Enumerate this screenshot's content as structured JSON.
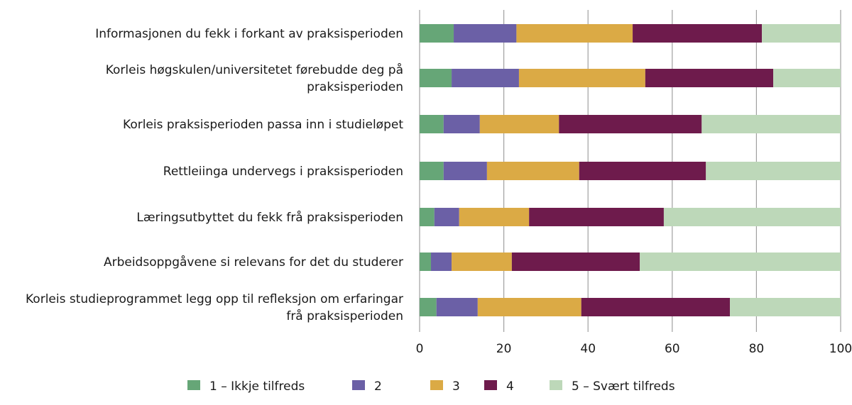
{
  "chart_data": {
    "type": "bar",
    "orientation": "horizontal",
    "stacked": true,
    "title": "",
    "xlabel": "",
    "ylabel": "",
    "xlim": [
      0,
      100
    ],
    "xticks": [
      0,
      20,
      40,
      60,
      80,
      100
    ],
    "grid": true,
    "legend_position": "bottom",
    "categories": [
      [
        "Informasjonen du fekk i forkant av praksisperioden"
      ],
      [
        "Korleis høgskulen/universitetet førebudde deg på",
        "praksisperioden"
      ],
      [
        "Korleis praksisperioden passa inn i studieløpet"
      ],
      [
        "Rettleiinga undervegs i praksisperioden"
      ],
      [
        "Læringsutbyttet du fekk frå praksisperioden"
      ],
      [
        "Arbeidsoppgåvene si relevans for det du studerer"
      ],
      [
        "Korleis studieprogrammet legg opp til refleksjon om erfaringar",
        "frå praksisperioden"
      ]
    ],
    "series": [
      {
        "name": "1 – Ikkje tilfreds",
        "color": "#66a677",
        "values": [
          8.1,
          7.6,
          5.7,
          5.7,
          3.5,
          2.7,
          4.0
        ]
      },
      {
        "name": "2",
        "color": "#6b60a6",
        "values": [
          14.9,
          16.0,
          8.6,
          10.3,
          5.9,
          4.9,
          9.8
        ]
      },
      {
        "name": "3",
        "color": "#dbaa45",
        "values": [
          27.6,
          30.0,
          18.8,
          21.9,
          16.6,
          14.3,
          24.6
        ]
      },
      {
        "name": "4",
        "color": "#6e1b4c",
        "values": [
          30.7,
          30.4,
          33.9,
          30.1,
          32.0,
          30.4,
          35.3
        ]
      },
      {
        "name": "5 – Svært tilfreds",
        "color": "#bdd8b9",
        "values": [
          18.7,
          16.0,
          33.0,
          32.0,
          42.0,
          47.7,
          26.3
        ]
      }
    ]
  }
}
